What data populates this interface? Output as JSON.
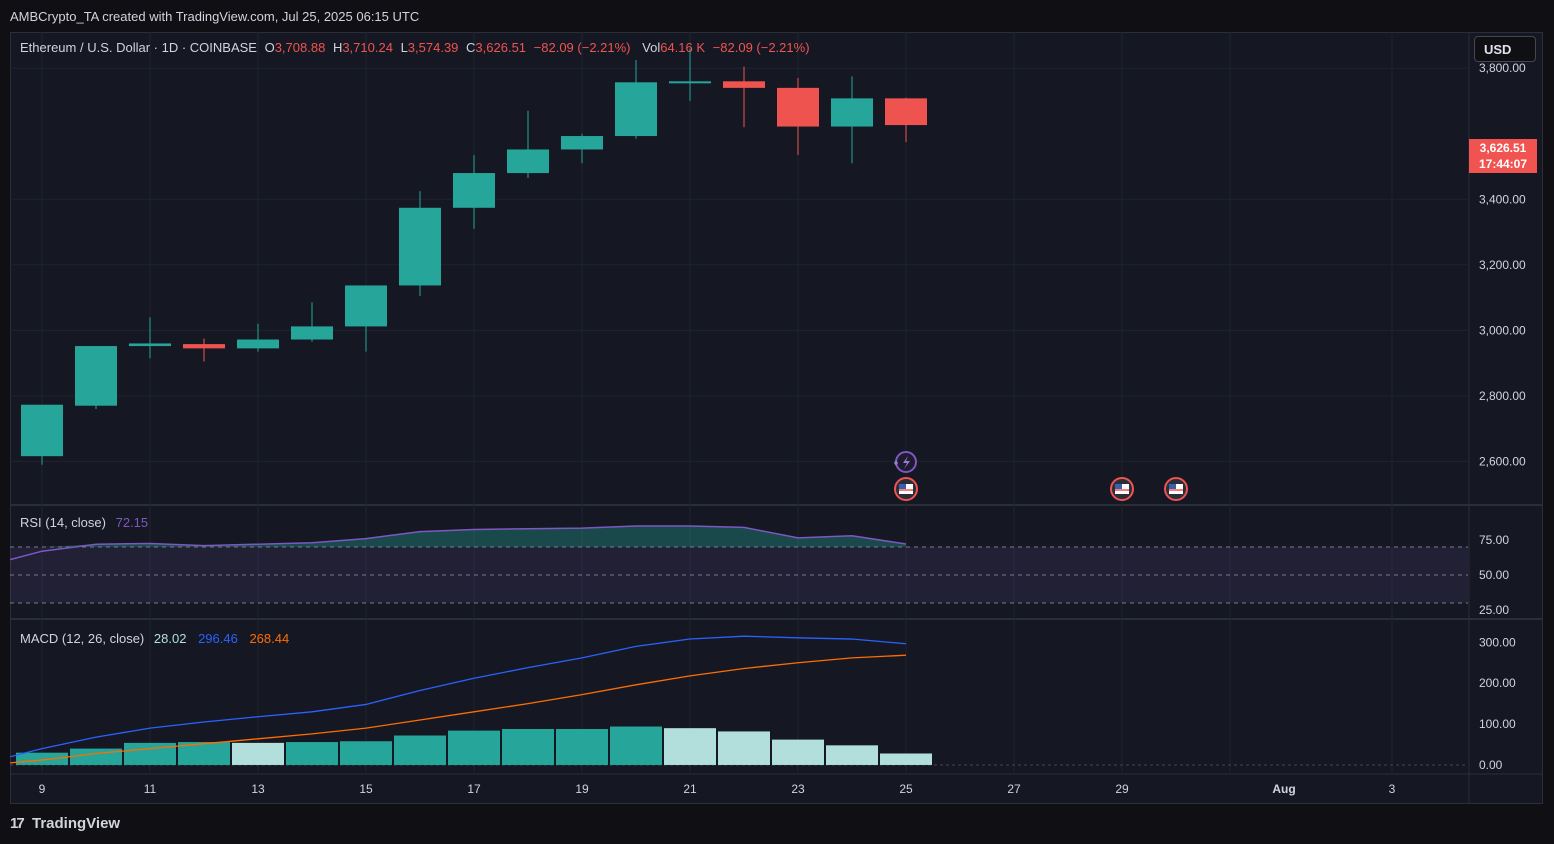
{
  "header": {
    "caption": "AMBCrypto_TA created with TradingView.com, Jul 25, 2025 06:15 UTC"
  },
  "legend": {
    "symbol": "Ethereum / U.S. Dollar · 1D · COINBASE",
    "o_label": "O",
    "o_value": "3,708.88",
    "h_label": "H",
    "h_value": "3,710.24",
    "l_label": "L",
    "l_value": "3,574.39",
    "c_label": "C",
    "c_value": "3,626.51",
    "change": "−82.09 (−2.21%)",
    "vol_label": "Vol",
    "vol_value": "64.16 K",
    "vol_change": "−82.09 (−2.21%)"
  },
  "currency_button": "USD",
  "last_price": {
    "price": "3,626.51",
    "countdown": "17:44:07"
  },
  "rsi_legend": {
    "label": "RSI (14, close)",
    "value": "72.15"
  },
  "macd_legend": {
    "label": "MACD (12, 26, close)",
    "hist": "28.02",
    "macd": "296.46",
    "signal": "268.44"
  },
  "brand": {
    "name": "TradingView"
  },
  "colors": {
    "up": "#26a69a",
    "down": "#ef5350",
    "rsi": "#7e57c2",
    "macd": "#2962ff",
    "signal": "#ff6d00",
    "hist_up": "#26a69a",
    "hist_fade": "#b2dfdb",
    "text_red": "#f05350",
    "text_teal": "#26a69a"
  },
  "chart_data": [
    {
      "type": "candlestick",
      "title": "Ethereum / U.S. Dollar · 1D · COINBASE",
      "x": [
        "Jul 9",
        "Jul 10",
        "Jul 11",
        "Jul 12",
        "Jul 13",
        "Jul 14",
        "Jul 15",
        "Jul 16",
        "Jul 17",
        "Jul 18",
        "Jul 19",
        "Jul 20",
        "Jul 21",
        "Jul 22",
        "Jul 23",
        "Jul 24",
        "Jul 25"
      ],
      "series": [
        {
          "name": "ETHUSD",
          "ohlc": [
            [
              2616,
              2773,
              2590,
              2770
            ],
            [
              2770,
              2952,
              2760,
              2952
            ],
            [
              2952,
              2960,
              2915,
              3040
            ],
            [
              2958,
              2945,
              2905,
              2975
            ],
            [
              2945,
              2972,
              2935,
              3020
            ],
            [
              2972,
              3012,
              2965,
              3085
            ],
            [
              3012,
              3137,
              2935,
              3137
            ],
            [
              3137,
              3374,
              3105,
              3425
            ],
            [
              3374,
              3480,
              3310,
              3535
            ],
            [
              3480,
              3552,
              3465,
              3670
            ],
            [
              3552,
              3593,
              3510,
              3600
            ],
            [
              3593,
              3757,
              3585,
              3825
            ],
            [
              3757,
              3760,
              3700,
              3860
            ],
            [
              3760,
              3740,
              3620,
              3805
            ],
            [
              3740,
              3622,
              3535,
              3770
            ],
            [
              3622,
              3708,
              3510,
              3775
            ],
            [
              3708,
              3626.51,
              3574.39,
              3710.24
            ]
          ]
        }
      ],
      "x_ticks": [
        "9",
        "11",
        "13",
        "15",
        "17",
        "19",
        "21",
        "23",
        "25",
        "27",
        "29",
        "Aug",
        "3"
      ],
      "y_ticks": [
        "3,800.00",
        "3,400.00",
        "3,200.00",
        "3,000.00",
        "2,800.00",
        "2,600.00"
      ],
      "ylim": [
        2470,
        3880
      ],
      "grid": true
    },
    {
      "type": "line",
      "title": "RSI (14, close)",
      "x": [
        "Jul 8",
        "Jul 9",
        "Jul 10",
        "Jul 11",
        "Jul 12",
        "Jul 13",
        "Jul 14",
        "Jul 15",
        "Jul 16",
        "Jul 17",
        "Jul 18",
        "Jul 19",
        "Jul 20",
        "Jul 21",
        "Jul 22",
        "Jul 23",
        "Jul 24",
        "Jul 25"
      ],
      "series": [
        {
          "name": "RSI",
          "values": [
            61,
            67,
            72,
            72.5,
            71,
            72,
            73,
            76,
            81,
            82.5,
            83,
            83.5,
            85,
            85,
            84,
            76.5,
            78,
            72.15
          ]
        }
      ],
      "bands": [
        70,
        50,
        30
      ],
      "y_ticks": [
        "75.00",
        "50.00",
        "25.00"
      ],
      "ylim": [
        25,
        95
      ]
    },
    {
      "type": "bar",
      "title": "MACD (12, 26, close)",
      "x": [
        "Jul 8",
        "Jul 9",
        "Jul 10",
        "Jul 11",
        "Jul 12",
        "Jul 13",
        "Jul 14",
        "Jul 15",
        "Jul 16",
        "Jul 17",
        "Jul 18",
        "Jul 19",
        "Jul 20",
        "Jul 21",
        "Jul 22",
        "Jul 23",
        "Jul 24",
        "Jul 25"
      ],
      "series": [
        {
          "name": "Histogram",
          "values": [
            null,
            30,
            40,
            54,
            56,
            54,
            56,
            58,
            72,
            84,
            88,
            88,
            94,
            90,
            82,
            62,
            48,
            28.02
          ]
        },
        {
          "name": "MACD",
          "values": [
            20,
            40,
            68,
            90,
            105,
            118,
            130,
            148,
            182,
            212,
            238,
            262,
            290,
            308,
            315,
            311,
            308,
            296.46
          ]
        },
        {
          "name": "Signal",
          "values": [
            5,
            12,
            28,
            40,
            52,
            64,
            76,
            90,
            110,
            130,
            150,
            172,
            196,
            218,
            236,
            250,
            262,
            268.44
          ]
        }
      ],
      "y_ticks": [
        "300.00",
        "200.00",
        "100.00",
        "0.00"
      ],
      "ylim": [
        -5,
        335
      ]
    }
  ]
}
